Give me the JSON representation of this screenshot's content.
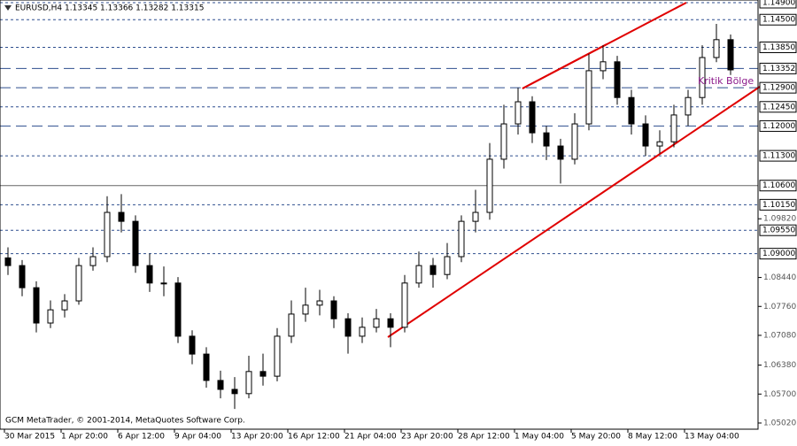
{
  "chart_data": {
    "type": "candlestick",
    "title": "EURUSD,H4  1.13345 1.13366 1.13282 1.13315",
    "footer": "GCM MetaTrader, © 2001-2014, MetaQuotes Software Corp.",
    "annotation": "Kritik Bölge",
    "categories": [
      "30 Mar 2015",
      null,
      null,
      null,
      "1 Apr 20:00",
      null,
      null,
      null,
      "6 Apr 12:00",
      null,
      null,
      null,
      "9 Apr 04:00",
      null,
      null,
      null,
      "13 Apr 20:00",
      null,
      null,
      null,
      "16 Apr 12:00",
      null,
      null,
      null,
      "21 Apr 04:00",
      null,
      null,
      null,
      "23 Apr 20:00",
      null,
      null,
      null,
      "28 Apr 12:00",
      null,
      null,
      null,
      "1 May 04:00",
      null,
      null,
      null,
      "5 May 20:00",
      null,
      null,
      null,
      "8 May 12:00",
      null,
      null,
      null,
      "13 May 04:00",
      null,
      null,
      null
    ],
    "open": [
      1.089,
      1.0872,
      1.082,
      1.0737,
      1.0768,
      1.0789,
      1.0872,
      1.0893,
      1.0997,
      1.0976,
      1.0872,
      1.0831,
      1.0831,
      1.0706,
      1.0664,
      1.0602,
      1.0581,
      1.0571,
      1.0623,
      1.0612,
      1.0706,
      1.0758,
      1.0779,
      1.0789,
      1.0747,
      1.0706,
      1.0727,
      1.0747,
      1.0727,
      1.0831,
      1.0872,
      1.0851,
      1.0893,
      1.0976,
      1.0997,
      1.1122,
      1.1205,
      1.1257,
      1.1184,
      1.1153,
      1.1122,
      1.1205,
      1.133,
      1.1351,
      1.1267,
      1.1205,
      1.1153,
      1.1163,
      1.1226,
      1.1267,
      1.1361,
      1.1403
    ],
    "high": [
      1.0915,
      1.0885,
      1.0835,
      1.079,
      1.0805,
      1.089,
      1.0915,
      1.1035,
      1.104,
      1.099,
      1.09,
      1.087,
      1.0845,
      1.072,
      1.068,
      1.0625,
      1.061,
      1.066,
      1.0665,
      1.0725,
      1.079,
      1.082,
      1.0815,
      1.08,
      1.076,
      1.075,
      1.077,
      1.076,
      1.085,
      1.0905,
      1.089,
      1.0925,
      1.099,
      1.105,
      1.116,
      1.125,
      1.129,
      1.127,
      1.12,
      1.117,
      1.123,
      1.137,
      1.139,
      1.1365,
      1.1285,
      1.1225,
      1.119,
      1.125,
      1.1285,
      1.139,
      1.144,
      1.1415
    ],
    "low": [
      1.085,
      1.08,
      1.0715,
      1.0725,
      1.075,
      1.078,
      1.086,
      1.088,
      1.095,
      1.0855,
      1.081,
      1.08,
      1.069,
      1.064,
      1.0585,
      1.056,
      1.0535,
      1.056,
      1.059,
      1.06,
      1.069,
      1.074,
      1.0755,
      1.0725,
      1.0665,
      1.069,
      1.0715,
      1.068,
      1.0715,
      1.082,
      1.082,
      1.084,
      1.088,
      1.095,
      1.098,
      1.11,
      1.118,
      1.116,
      1.112,
      1.1065,
      1.111,
      1.119,
      1.131,
      1.125,
      1.118,
      1.113,
      1.1135,
      1.115,
      1.12,
      1.125,
      1.135,
      1.132
    ],
    "close": [
      1.0872,
      1.082,
      1.0737,
      1.0768,
      1.0789,
      1.0872,
      1.0893,
      1.0997,
      1.0976,
      1.0872,
      1.0831,
      1.0831,
      1.0706,
      1.0664,
      1.0602,
      1.0581,
      1.0571,
      1.0623,
      1.0612,
      1.0706,
      1.0758,
      1.0779,
      1.0789,
      1.0747,
      1.0706,
      1.0727,
      1.0747,
      1.0727,
      1.0831,
      1.0872,
      1.0851,
      1.0893,
      1.0976,
      1.0997,
      1.1122,
      1.1205,
      1.1257,
      1.1184,
      1.1153,
      1.1122,
      1.1205,
      1.133,
      1.1351,
      1.1267,
      1.1205,
      1.1153,
      1.1163,
      1.1226,
      1.1267,
      1.1361,
      1.1403,
      1.1332
    ],
    "up_color": "#ffffff",
    "down_color": "#000000",
    "wick_color": "#000000",
    "ylim": [
      1.0502,
      1.149
    ],
    "yticks": [
      {
        "value": 1.0502,
        "label": "1.05020"
      },
      {
        "value": 1.057,
        "label": "1.05700"
      },
      {
        "value": 1.0638,
        "label": "1.06380"
      },
      {
        "value": 1.0708,
        "label": "1.07080"
      },
      {
        "value": 1.0776,
        "label": "1.07760"
      },
      {
        "value": 1.0844,
        "label": "1.08440"
      },
      {
        "value": 1.0982,
        "label": "1.09820"
      }
    ],
    "levels": [
      {
        "value": 1.149,
        "label": "1.14900",
        "style": "dash"
      },
      {
        "value": 1.145,
        "label": "1.14500",
        "style": "dash"
      },
      {
        "value": 1.1385,
        "label": "1.13850",
        "style": "dash"
      },
      {
        "value": 1.13352,
        "label": "1.13352",
        "style": "longdash"
      },
      {
        "value": 1.129,
        "label": "1.12900",
        "style": "longdash"
      },
      {
        "value": 1.1245,
        "label": "1.12450",
        "style": "dash"
      },
      {
        "value": 1.12,
        "label": "1.12000",
        "style": "longdash"
      },
      {
        "value": 1.113,
        "label": "1.11300",
        "style": "dash"
      },
      {
        "value": 1.106,
        "label": "1.10600",
        "style": "solid"
      },
      {
        "value": 1.1015,
        "label": "1.10150",
        "style": "dash"
      },
      {
        "value": 1.0955,
        "label": "1.09550",
        "style": "dash"
      },
      {
        "value": 1.09,
        "label": "1.09000",
        "style": "dash"
      }
    ],
    "level_color": "#2f4f8f"
  }
}
